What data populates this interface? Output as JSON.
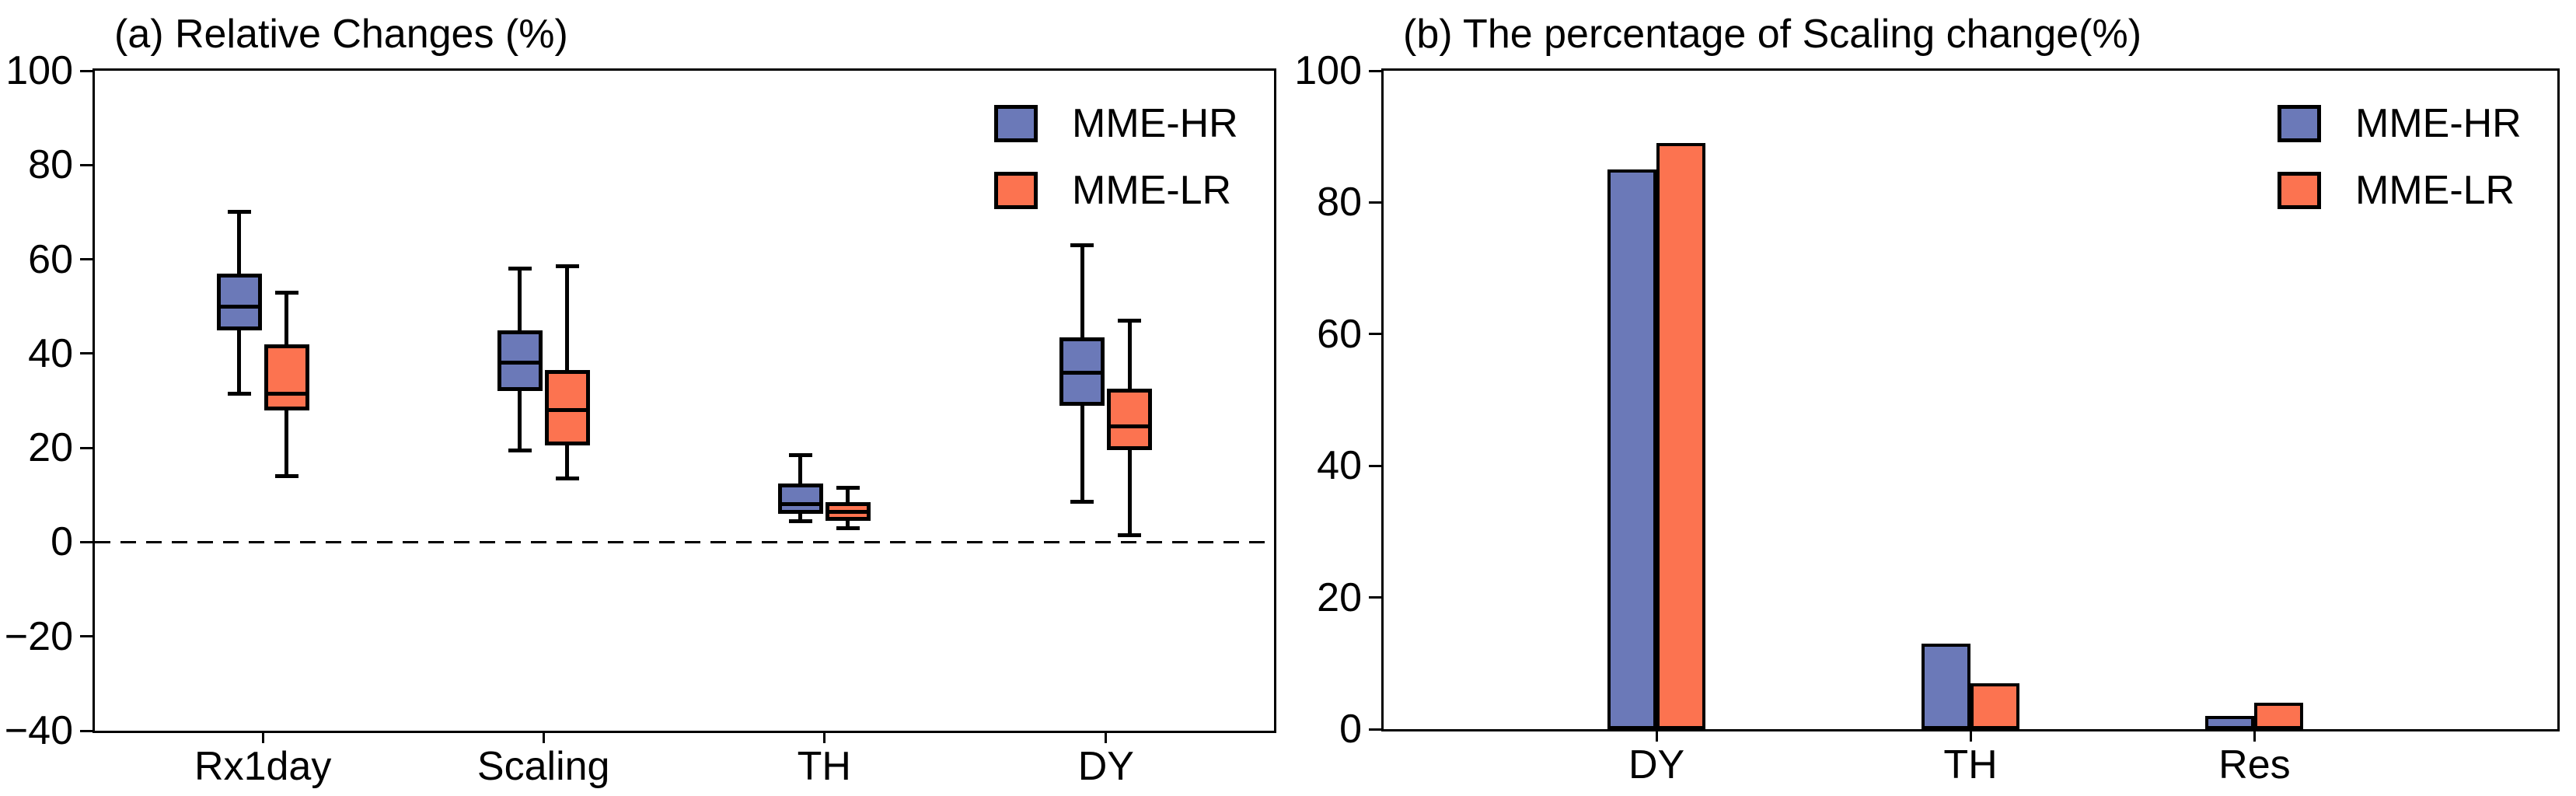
{
  "chart_data": [
    {
      "type": "box",
      "panel_label": "a",
      "title": "(a) Relative Changes (%)",
      "categories": [
        "Rx1day",
        "Scaling",
        "TH",
        "DY"
      ],
      "y_axis": {
        "min": -40,
        "max": 100,
        "tick_step": 20,
        "ticks": [
          100,
          80,
          60,
          40,
          20,
          0,
          -20,
          -40
        ]
      },
      "zero_line_at": 0,
      "grid": false,
      "legend_position": "upper right",
      "series": [
        {
          "name": "MME-HR",
          "color": "#6b79b8",
          "boxes": [
            {
              "whisker_low": 31.5,
              "q1": 45,
              "median": 50,
              "q3": 57,
              "whisker_high": 70
            },
            {
              "whisker_low": 19.5,
              "q1": 32,
              "median": 38,
              "q3": 45,
              "whisker_high": 58
            },
            {
              "whisker_low": 4.5,
              "q1": 6,
              "median": 8,
              "q3": 12.5,
              "whisker_high": 18.5
            },
            {
              "whisker_low": 8.5,
              "q1": 29,
              "median": 36,
              "q3": 43.5,
              "whisker_high": 63
            }
          ]
        },
        {
          "name": "MME-LR",
          "color": "#fc7350",
          "boxes": [
            {
              "whisker_low": 14,
              "q1": 28,
              "median": 31.5,
              "q3": 42,
              "whisker_high": 53
            },
            {
              "whisker_low": 13.5,
              "q1": 20.5,
              "median": 28,
              "q3": 36.5,
              "whisker_high": 58.5
            },
            {
              "whisker_low": 3,
              "q1": 4.5,
              "median": 6.5,
              "q3": 8.5,
              "whisker_high": 11.5
            },
            {
              "whisker_low": 1.5,
              "q1": 19.5,
              "median": 24.5,
              "q3": 32.5,
              "whisker_high": 47
            }
          ]
        }
      ]
    },
    {
      "type": "bar",
      "panel_label": "b",
      "title": "(b) The percentage of Scaling change(%)",
      "categories": [
        "DY",
        "TH",
        "Res"
      ],
      "y_axis": {
        "min": 0,
        "max": 100,
        "tick_step": 20,
        "ticks": [
          100,
          80,
          60,
          40,
          20,
          0
        ]
      },
      "grid": false,
      "legend_position": "upper right",
      "series": [
        {
          "name": "MME-HR",
          "color": "#6b79b8",
          "values": [
            85,
            13,
            2
          ]
        },
        {
          "name": "MME-LR",
          "color": "#fc7350",
          "values": [
            89,
            7,
            4
          ]
        }
      ]
    }
  ]
}
